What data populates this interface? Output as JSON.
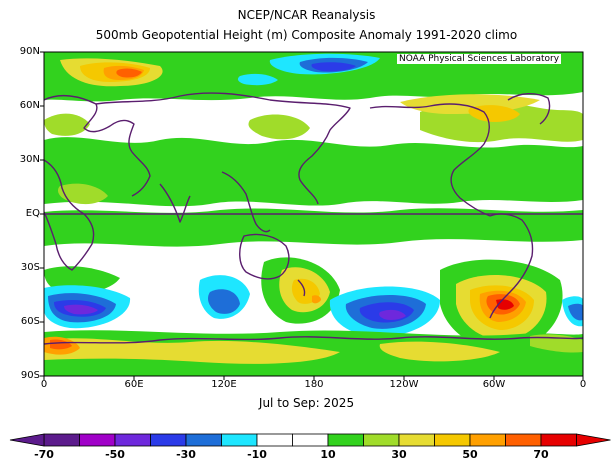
{
  "titles": {
    "line1": "NCEP/NCAR Reanalysis",
    "line2": "500mb Geopotential Height (m) Composite Anomaly 1991-2020 climo"
  },
  "credit": "NOAA Physical Sciences Laboratory",
  "period": "Jul to Sep: 2025",
  "map": {
    "latitude_labels": [
      "90N",
      "60N",
      "30N",
      "EQ",
      "30S",
      "60S",
      "90S"
    ],
    "longitude_labels": [
      "0",
      "60E",
      "120E",
      "180",
      "120W",
      "60W",
      "0"
    ]
  },
  "colorbar": {
    "tick_labels": [
      "-70",
      "-50",
      "-30",
      "-10",
      "10",
      "30",
      "50",
      "70"
    ],
    "colors": [
      "#5c1b8c",
      "#a000c8",
      "#6e28dc",
      "#2b3be8",
      "#1e6ed8",
      "#1ee6ff",
      "#ffffff",
      "#ffffff",
      "#32d21e",
      "#a0dc2a",
      "#e6dc32",
      "#f5c800",
      "#ffa000",
      "#ff6000",
      "#e60000"
    ]
  },
  "colors": {
    "coastline": "#5a1e6e",
    "equator": "#5a1e6e",
    "frame": "#000000"
  }
}
